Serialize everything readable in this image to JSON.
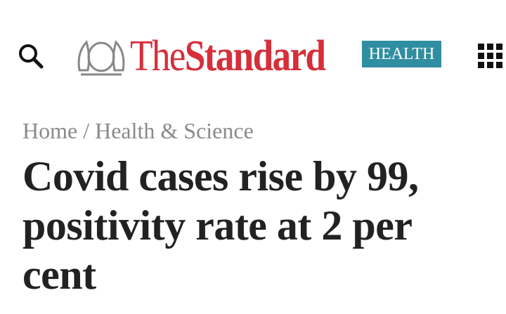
{
  "header": {
    "brand_the": "The",
    "brand_standard": "Standard",
    "section": "HEALTH"
  },
  "breadcrumb": {
    "items": [
      "Home",
      "Health & Science"
    ],
    "separator": "/"
  },
  "article": {
    "title_lines": [
      "Covid cases rise by 99,",
      "positivity rate at 2 per",
      "cent"
    ]
  }
}
